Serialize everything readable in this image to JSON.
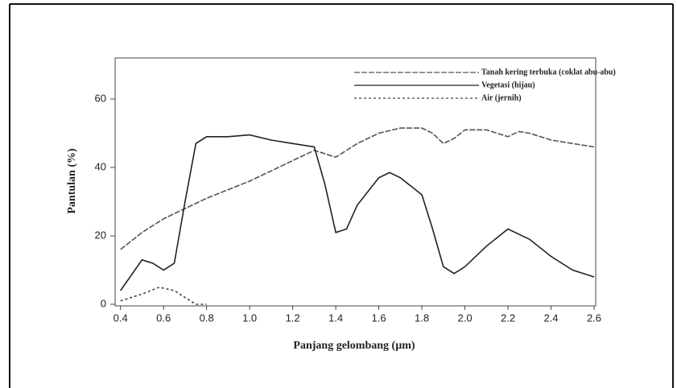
{
  "chart_data": {
    "type": "line",
    "x_label": "Panjang gelombang (µm)",
    "y_label": "Pantulan (%)",
    "xlim": [
      0.375,
      2.6
    ],
    "ylim": [
      0,
      72
    ],
    "xticks": [
      0.4,
      0.6,
      0.8,
      {
        "value": 1,
        "label": "1.0"
      },
      1.2,
      1.4,
      1.6,
      1.8,
      {
        "value": 2,
        "label": "2.0"
      },
      2.2,
      2.4,
      2.6
    ],
    "yticks": [
      0,
      20,
      40,
      60
    ],
    "series": [
      {
        "name": "Tanah kering terbuka (coklat abu-abu)",
        "color": "#555555",
        "dash": "7 2",
        "x": [
          0.4,
          0.5,
          0.6,
          0.7,
          0.8,
          0.9,
          1.0,
          1.1,
          1.2,
          1.3,
          1.4,
          1.5,
          1.6,
          1.7,
          1.8,
          1.85,
          1.9,
          1.95,
          2.0,
          2.1,
          2.2,
          2.25,
          2.3,
          2.4,
          2.5,
          2.6
        ],
        "values": [
          16,
          21,
          25,
          28,
          31,
          33.5,
          36,
          39,
          42,
          45,
          43,
          47,
          50,
          51.5,
          51.5,
          50,
          47,
          48.5,
          51,
          51,
          49,
          50.5,
          50,
          48,
          47,
          46
        ]
      },
      {
        "name": "Vegetasi (hijau)",
        "color": "#222222",
        "dash": "none",
        "x": [
          0.4,
          0.5,
          0.55,
          0.6,
          0.65,
          0.7,
          0.75,
          0.8,
          0.9,
          1.0,
          1.1,
          1.2,
          1.3,
          1.35,
          1.4,
          1.45,
          1.5,
          1.6,
          1.65,
          1.7,
          1.8,
          1.85,
          1.9,
          1.95,
          2.0,
          2.1,
          2.2,
          2.3,
          2.4,
          2.5,
          2.6
        ],
        "values": [
          4,
          13,
          12,
          10,
          12,
          30,
          47,
          49,
          49,
          49.5,
          48,
          47,
          46,
          35,
          21,
          22,
          29,
          37,
          38.5,
          37,
          32,
          22,
          11,
          9,
          11,
          17,
          22,
          19,
          14,
          10,
          8
        ]
      },
      {
        "name": "Air (jernih)",
        "color": "#444444",
        "dash": "3 3",
        "x": [
          0.4,
          0.5,
          0.58,
          0.65,
          0.7,
          0.75,
          0.8
        ],
        "values": [
          1,
          3,
          5,
          4,
          2,
          0,
          0
        ]
      }
    ]
  }
}
